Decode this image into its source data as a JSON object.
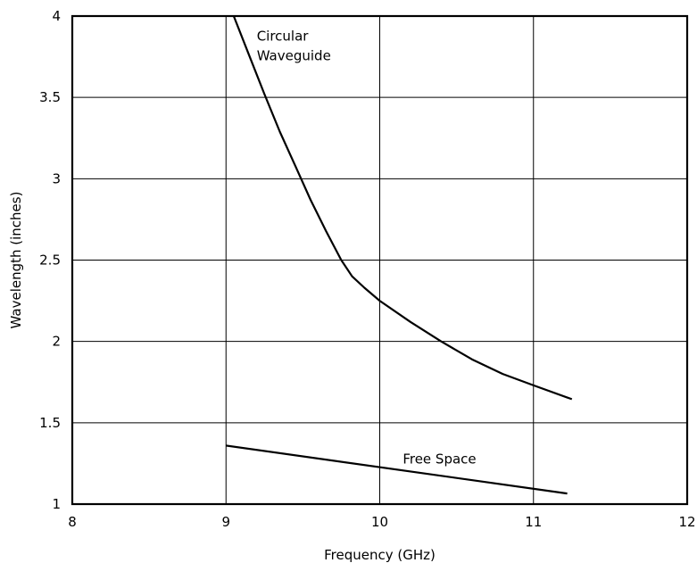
{
  "chart_data": {
    "type": "line",
    "title": "",
    "xlabel": "Frequency (GHz)",
    "ylabel": "Wavelength (inches)",
    "xlim": [
      8,
      12
    ],
    "ylim": [
      1,
      4
    ],
    "x_ticks": [
      8,
      9,
      10,
      11,
      12
    ],
    "y_ticks": [
      1,
      1.5,
      2,
      2.5,
      3,
      3.5,
      4
    ],
    "x_tick_labels": [
      "8",
      "9",
      "10",
      "11",
      "12"
    ],
    "y_tick_labels": [
      "1",
      "1.5",
      "2",
      "2.5",
      "3",
      "3.5",
      "4"
    ],
    "grid": true,
    "legend": "none",
    "series": [
      {
        "id": "circular-waveguide",
        "points": [
          [
            9.05,
            4.0
          ],
          [
            9.15,
            3.76
          ],
          [
            9.25,
            3.52
          ],
          [
            9.35,
            3.29
          ],
          [
            9.45,
            3.08
          ],
          [
            9.55,
            2.87
          ],
          [
            9.65,
            2.68
          ],
          [
            9.75,
            2.5
          ],
          [
            9.82,
            2.4
          ],
          [
            9.9,
            2.33
          ],
          [
            10.0,
            2.25
          ],
          [
            10.2,
            2.12
          ],
          [
            10.4,
            2.0
          ],
          [
            10.6,
            1.89
          ],
          [
            10.8,
            1.8
          ],
          [
            11.0,
            1.73
          ],
          [
            11.25,
            1.645
          ]
        ]
      },
      {
        "id": "free-space",
        "points": [
          [
            9.0,
            1.36
          ],
          [
            11.22,
            1.065
          ]
        ]
      }
    ],
    "annotations": [
      {
        "id": "circular-waveguide",
        "lines": [
          "Circular",
          "Waveguide"
        ],
        "x": 9.2,
        "y": 3.85
      },
      {
        "id": "free-space",
        "lines": [
          "Free Space"
        ],
        "x": 10.15,
        "y": 1.25
      }
    ]
  }
}
